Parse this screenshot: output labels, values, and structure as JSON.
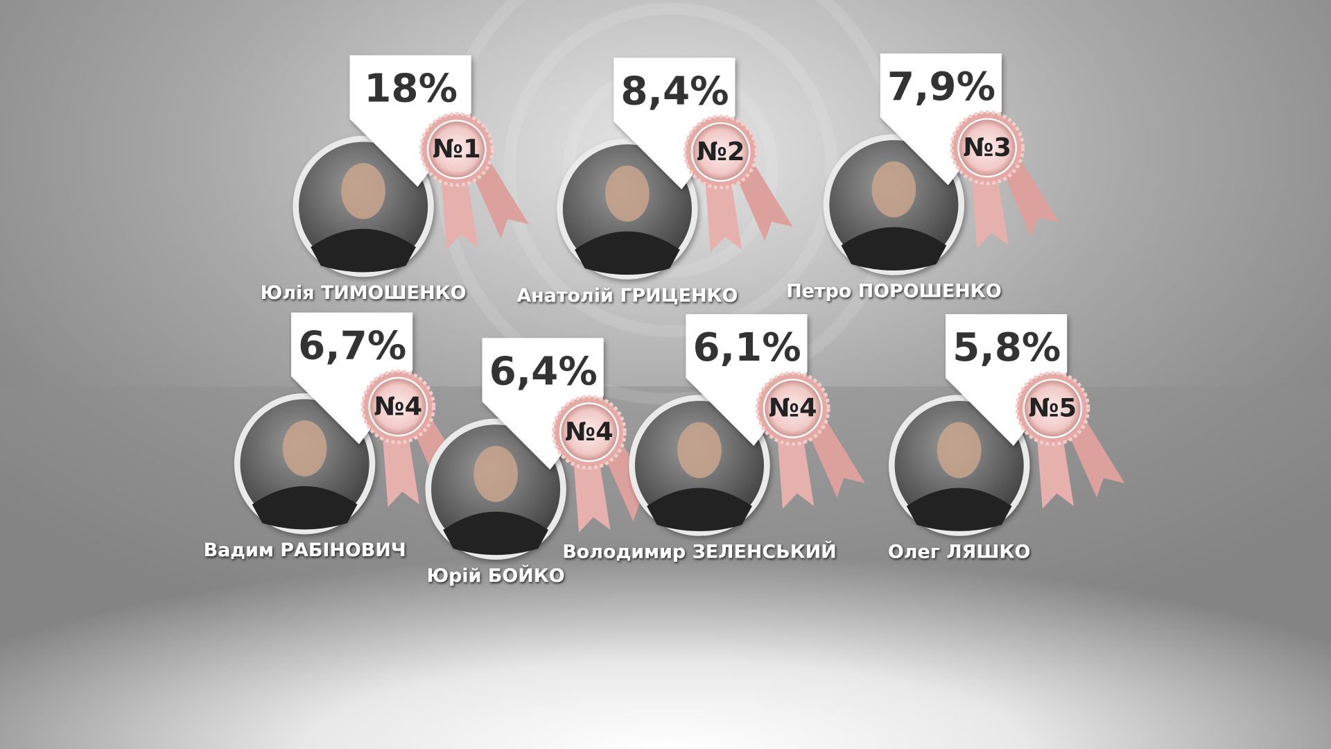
{
  "candidates": [
    {
      "percent": "18%",
      "rank": "№1",
      "name": "Юлія ТИМОШЕНКО"
    },
    {
      "percent": "8,4%",
      "rank": "№2",
      "name": "Анатолій ГРИЦЕНКО"
    },
    {
      "percent": "7,9%",
      "rank": "№3",
      "name": "Петро ПОРОШЕНКО"
    },
    {
      "percent": "6,7%",
      "rank": "№4",
      "name": "Вадим РАБІНОВИЧ"
    },
    {
      "percent": "6,4%",
      "rank": "№4",
      "name": "Юрій БОЙКО"
    },
    {
      "percent": "6,1%",
      "rank": "№4",
      "name": "Володимир ЗЕЛЕНСЬКИЙ"
    },
    {
      "percent": "5,8%",
      "rank": "№5",
      "name": "Олег ЛЯШКО"
    }
  ]
}
